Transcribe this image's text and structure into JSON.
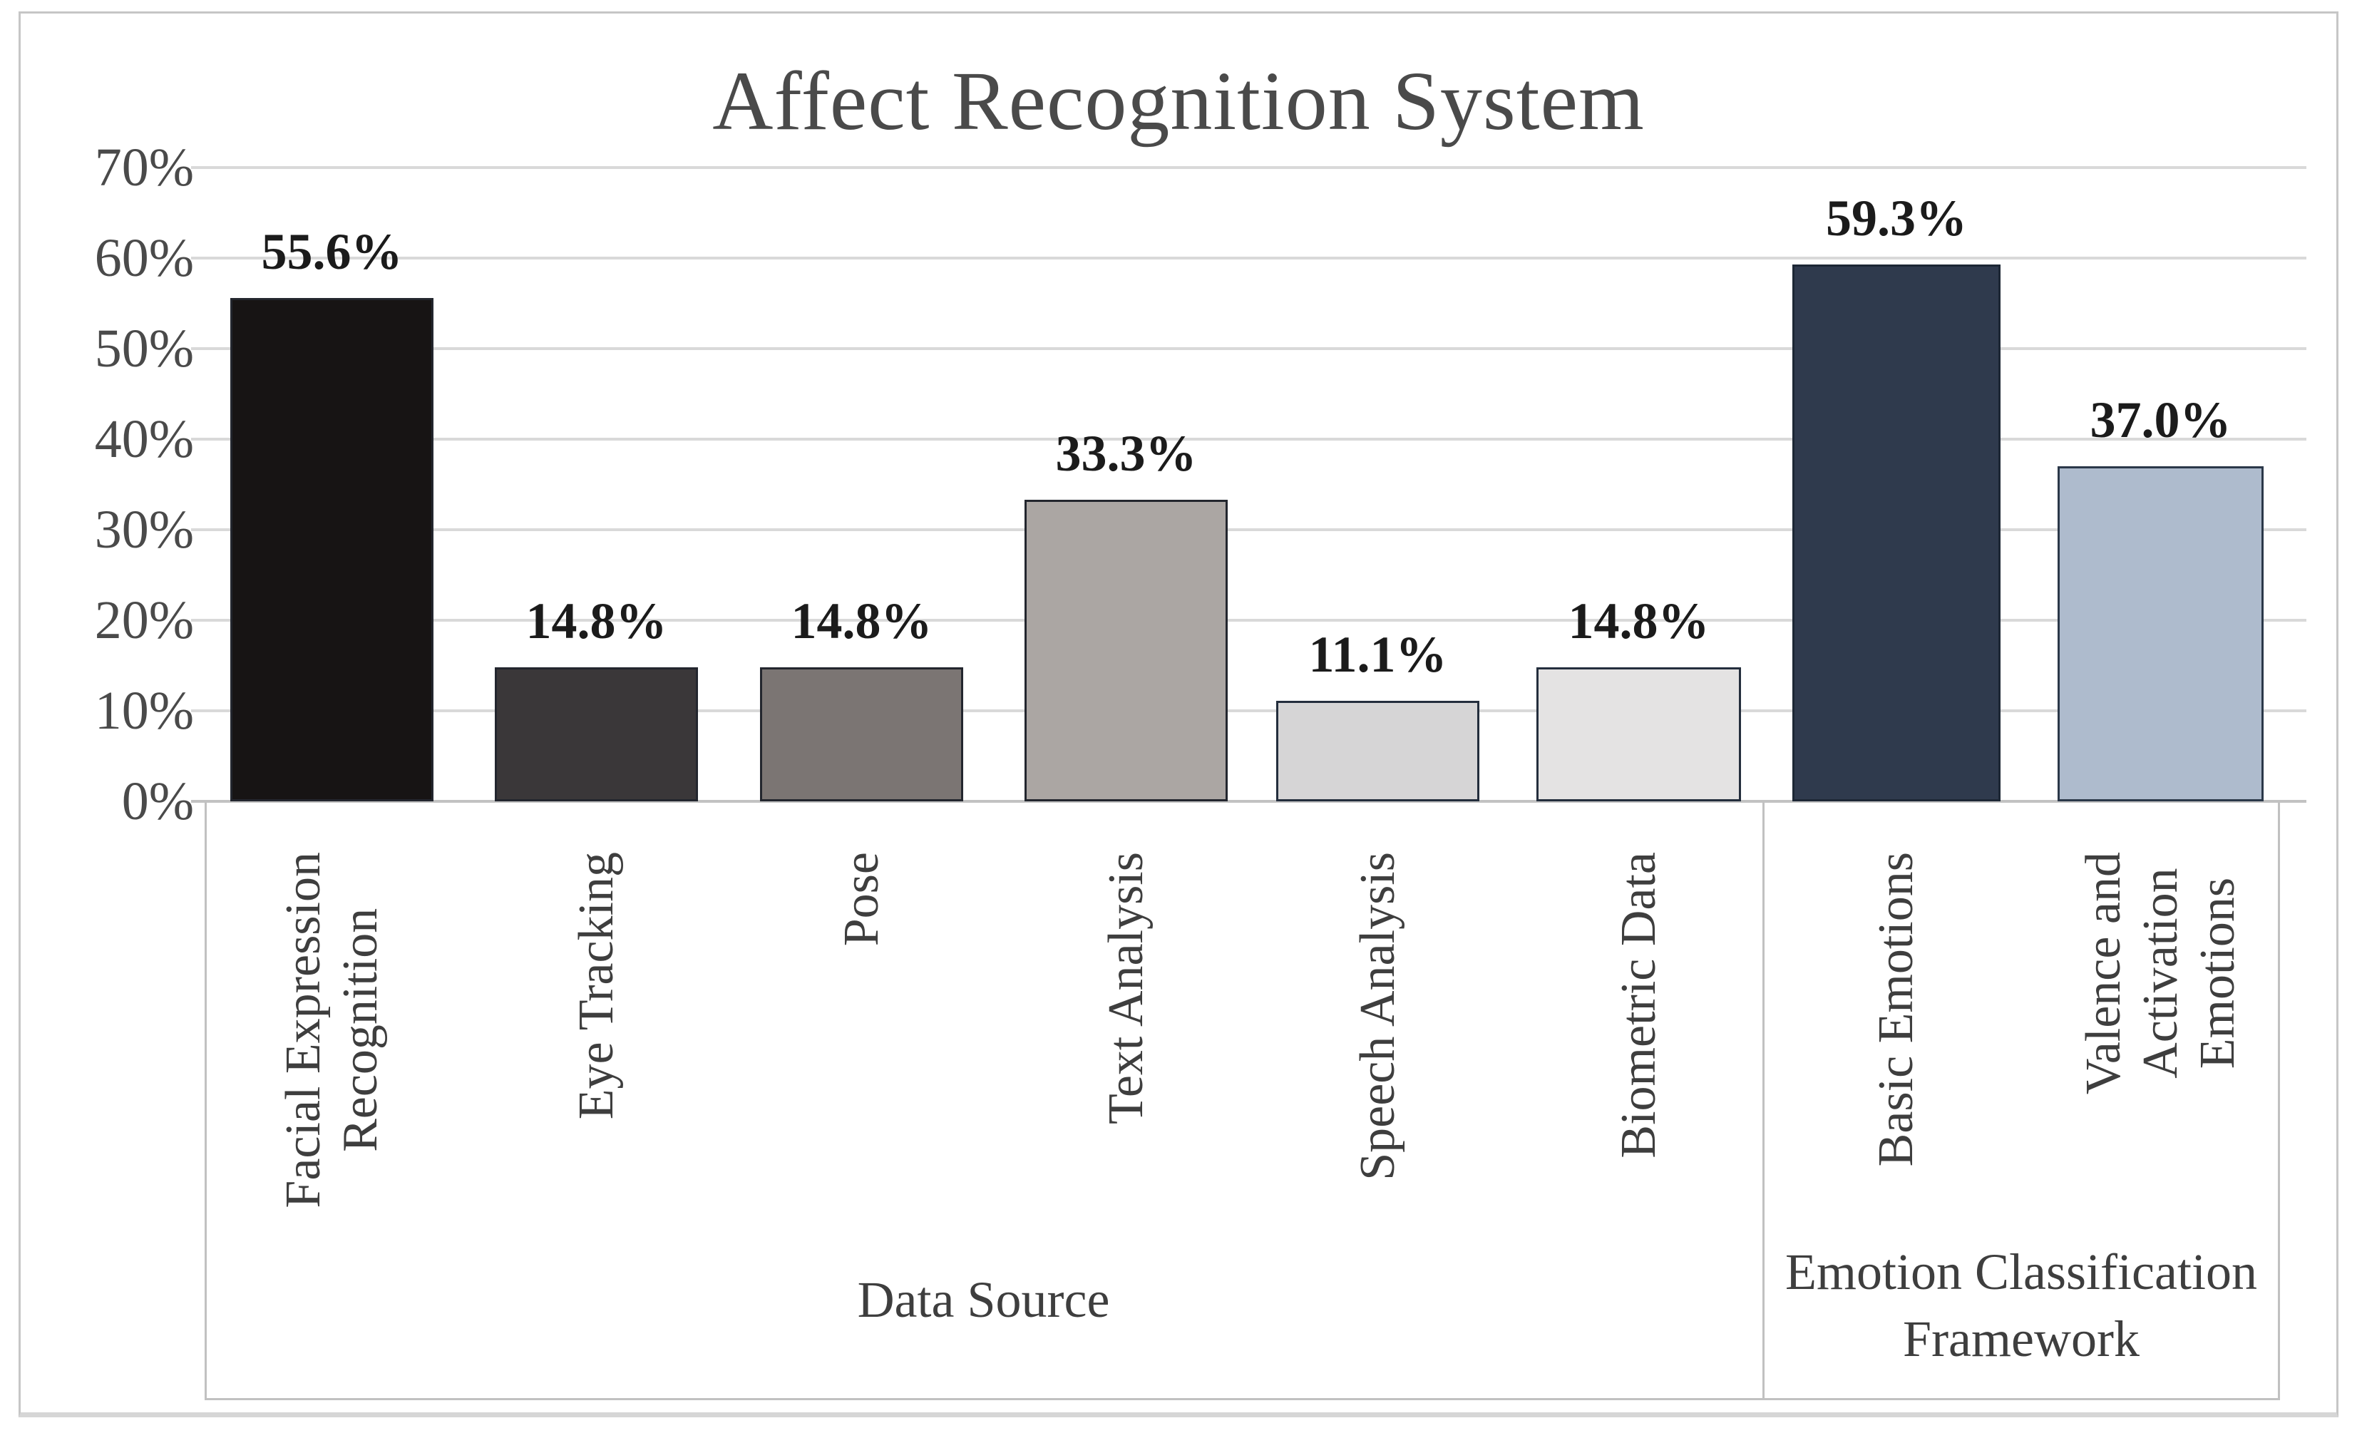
{
  "title": "Affect Recognition System",
  "colors": {
    "gridline": "#d9d9d9",
    "axis_line": "#c2c2c2",
    "box_border": "#c1c1c1",
    "frame_border": "#c6c6c6",
    "title_text": "#4a4a4a",
    "tick_text": "#4a4a4a",
    "category_text": "#3e3e3e",
    "value_label_text": "#1b1b1b"
  },
  "chart_data": {
    "type": "bar",
    "title": "Affect Recognition System",
    "xlabel": "",
    "ylabel": "",
    "ylim": [
      0,
      70
    ],
    "grid": true,
    "legend": false,
    "y_tick_labels": [
      "70%",
      "60%",
      "50%",
      "40%",
      "30%",
      "20%",
      "10%",
      "0%"
    ],
    "groups": [
      {
        "label": "Data Source",
        "label_display": "Data Source",
        "categories": [
          "Facial Expression Recognition",
          "Eye Tracking",
          "Pose",
          "Text Analysis",
          "Speech Analysis",
          "Biometric Data"
        ],
        "values": [
          55.6,
          14.8,
          14.8,
          33.3,
          11.1,
          14.8
        ]
      },
      {
        "label": "Emotion Classification Framework",
        "label_display": "Emotion Classification\nFramework",
        "categories": [
          "Basic Emotions",
          "Valence and Activation Emotions"
        ],
        "values": [
          59.3,
          37.0
        ]
      }
    ],
    "bars": [
      {
        "category": "Facial Expression Recognition",
        "lines": "Facial Expression\nRecognition",
        "value": 55.6,
        "value_label": "55.6%",
        "fill": "#171414",
        "border": "#23262e",
        "group": 0
      },
      {
        "category": "Eye Tracking",
        "lines": "Eye Tracking",
        "value": 14.8,
        "value_label": "14.8%",
        "fill": "#3a3739",
        "border": "#23262e",
        "group": 0
      },
      {
        "category": "Pose",
        "lines": "Pose",
        "value": 14.8,
        "value_label": "14.8%",
        "fill": "#7b7573",
        "border": "#23262e",
        "group": 0
      },
      {
        "category": "Text Analysis",
        "lines": "Text Analysis",
        "value": 33.3,
        "value_label": "33.3%",
        "fill": "#aba6a3",
        "border": "#23262e",
        "group": 0
      },
      {
        "category": "Speech Analysis",
        "lines": "Speech Analysis",
        "value": 11.1,
        "value_label": "11.1%",
        "fill": "#d6d5d6",
        "border": "#242e3d",
        "group": 0
      },
      {
        "category": "Biometric Data",
        "lines": "Biometric Data",
        "value": 14.8,
        "value_label": "14.8%",
        "fill": "#e4e3e3",
        "border": "#242e3d",
        "group": 0
      },
      {
        "category": "Basic Emotions",
        "lines": "Basic Emotions",
        "value": 59.3,
        "value_label": "59.3%",
        "fill": "#2f3a4d",
        "border": "#1d2735",
        "group": 1
      },
      {
        "category": "Valence and Activation Emotions",
        "lines": "Valence and\nActivation\nEmotions",
        "value": 37.0,
        "value_label": "37.0%",
        "fill": "#aebbcd",
        "border": "#2b3849",
        "group": 1
      }
    ]
  }
}
